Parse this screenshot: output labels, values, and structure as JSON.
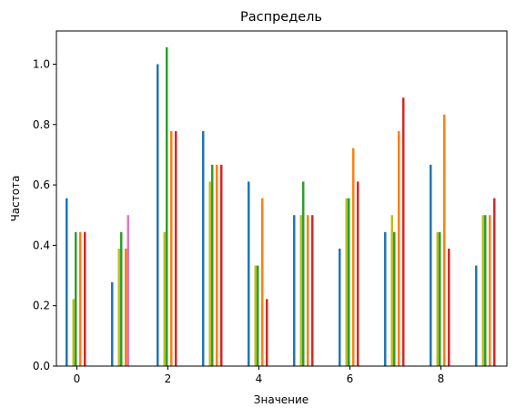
{
  "chart_data": {
    "type": "bar",
    "title": "Распредель",
    "xlabel": "Значение",
    "ylabel": "Частота",
    "xlim": [
      -0.45,
      9.45
    ],
    "ylim": [
      0,
      1.11
    ],
    "xticks": [
      0,
      2,
      4,
      6,
      8
    ],
    "xtick_labels": [
      "0",
      "2",
      "4",
      "6",
      "8"
    ],
    "yticks": [
      0.0,
      0.2,
      0.4,
      0.6,
      0.8,
      1.0
    ],
    "ytick_labels": [
      "0.0",
      "0.2",
      "0.4",
      "0.6",
      "0.8",
      "1.0"
    ],
    "grid": false,
    "categories": [
      0,
      1,
      2,
      3,
      4,
      5,
      6,
      7,
      8,
      9
    ],
    "series": [
      {
        "color": "#1f77b4",
        "values": [
          0.556,
          0.278,
          1.0,
          0.778,
          0.611,
          0.5,
          0.389,
          0.444,
          0.667,
          0.333
        ]
      },
      {
        "color": "#8c564b",
        "values": [
          0.0,
          0.0,
          0.0,
          0.0,
          0.0,
          0.0,
          0.0,
          0.0,
          0.0,
          0.0
        ]
      },
      {
        "color": "#7f7f7f",
        "values": [
          0.0,
          0.0,
          0.0,
          0.0,
          0.0,
          0.0,
          0.0,
          0.0,
          0.0,
          0.0
        ]
      },
      {
        "color": "#bcbd22",
        "values": [
          0.222,
          0.389,
          0.444,
          0.611,
          0.333,
          0.5,
          0.556,
          0.5,
          0.444,
          0.5
        ]
      },
      {
        "color": "#2ca02c",
        "values": [
          0.444,
          0.444,
          1.056,
          0.667,
          0.333,
          0.611,
          0.556,
          0.444,
          0.444,
          0.5
        ]
      },
      {
        "color": "#9467bd",
        "values": [
          0.0,
          0.0,
          0.0,
          0.0,
          0.0,
          0.0,
          0.0,
          0.0,
          0.0,
          0.0
        ]
      },
      {
        "color": "#ff7f0e",
        "values": [
          0.444,
          0.389,
          0.778,
          0.667,
          0.556,
          0.5,
          0.722,
          0.778,
          0.833,
          0.5
        ]
      },
      {
        "color": "#e377c2",
        "values": [
          0.0,
          0.5,
          0.0,
          0.0,
          0.0,
          0.0,
          0.0,
          0.0,
          0.0,
          0.0
        ]
      },
      {
        "color": "#d62728",
        "values": [
          0.444,
          0.0,
          0.778,
          0.667,
          0.222,
          0.5,
          0.611,
          0.889,
          0.389,
          0.556
        ]
      },
      {
        "color": "#17becf",
        "values": [
          0.0,
          0.0,
          0.0,
          0.0,
          0.0,
          0.0,
          0.0,
          0.0,
          0.0,
          0.0
        ]
      }
    ]
  }
}
